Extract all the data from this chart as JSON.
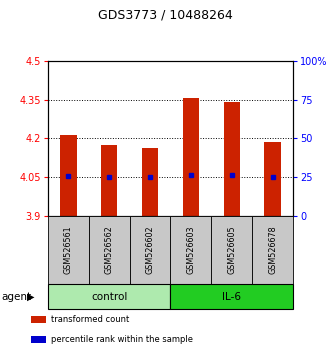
{
  "title": "GDS3773 / 10488264",
  "samples": [
    "GSM526561",
    "GSM526562",
    "GSM526602",
    "GSM526603",
    "GSM526605",
    "GSM526678"
  ],
  "red_values": [
    4.215,
    4.175,
    4.165,
    4.355,
    4.34,
    4.185
  ],
  "blue_values": [
    4.055,
    4.05,
    4.05,
    4.06,
    4.06,
    4.05
  ],
  "y_min": 3.9,
  "y_max": 4.5,
  "y_ticks": [
    3.9,
    4.05,
    4.2,
    4.35,
    4.5
  ],
  "y_tick_labels": [
    "3.9",
    "4.05",
    "4.2",
    "4.35",
    "4.5"
  ],
  "right_y_ticks": [
    3.9,
    4.05,
    4.2,
    4.35,
    4.5
  ],
  "right_y_tick_labels": [
    "0",
    "25",
    "50",
    "75",
    "100%"
  ],
  "groups": [
    {
      "label": "control",
      "indices": [
        0,
        1,
        2
      ],
      "color": "#AEEAAE"
    },
    {
      "label": "IL-6",
      "indices": [
        3,
        4,
        5
      ],
      "color": "#22CC22"
    }
  ],
  "bar_bottom": 3.9,
  "red_color": "#CC2200",
  "blue_color": "#0000CC",
  "legend_items": [
    {
      "color": "#CC2200",
      "label": "transformed count"
    },
    {
      "color": "#0000CC",
      "label": "percentile rank within the sample"
    }
  ],
  "sample_box_color": "#C8C8C8",
  "title_fontsize": 9,
  "tick_fontsize": 7,
  "bar_width": 0.4,
  "agent_label": "agent"
}
